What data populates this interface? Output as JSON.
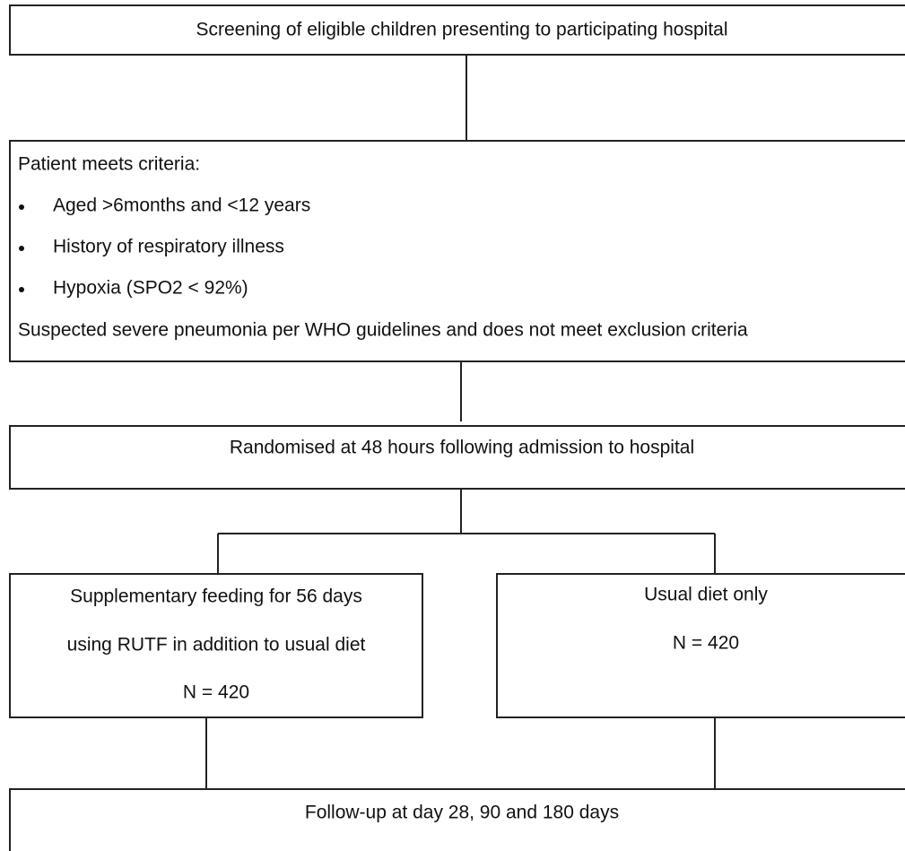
{
  "nodes": [
    {
      "text": "Screening of eligible children presenting to participating hospital"
    },
    {
      "title": "Patient meets criteria:",
      "bullets": [
        "Aged >6months and <12 years",
        "History of respiratory illness",
        "Hypoxia (SPO2 < 92%)"
      ],
      "footer": "Suspected severe pneumonia per WHO guidelines and does not meet exclusion criteria"
    },
    {
      "text": "Randomised at 48 hours following admission to hospital"
    },
    {
      "lines": [
        "Supplementary feeding for 56 days",
        "using RUTF in addition to usual diet",
        "N = 420"
      ]
    },
    {
      "lines": [
        "Usual diet only",
        "N = 420"
      ]
    },
    {
      "text": "Follow-up at day 28, 90 and 180 days"
    }
  ]
}
